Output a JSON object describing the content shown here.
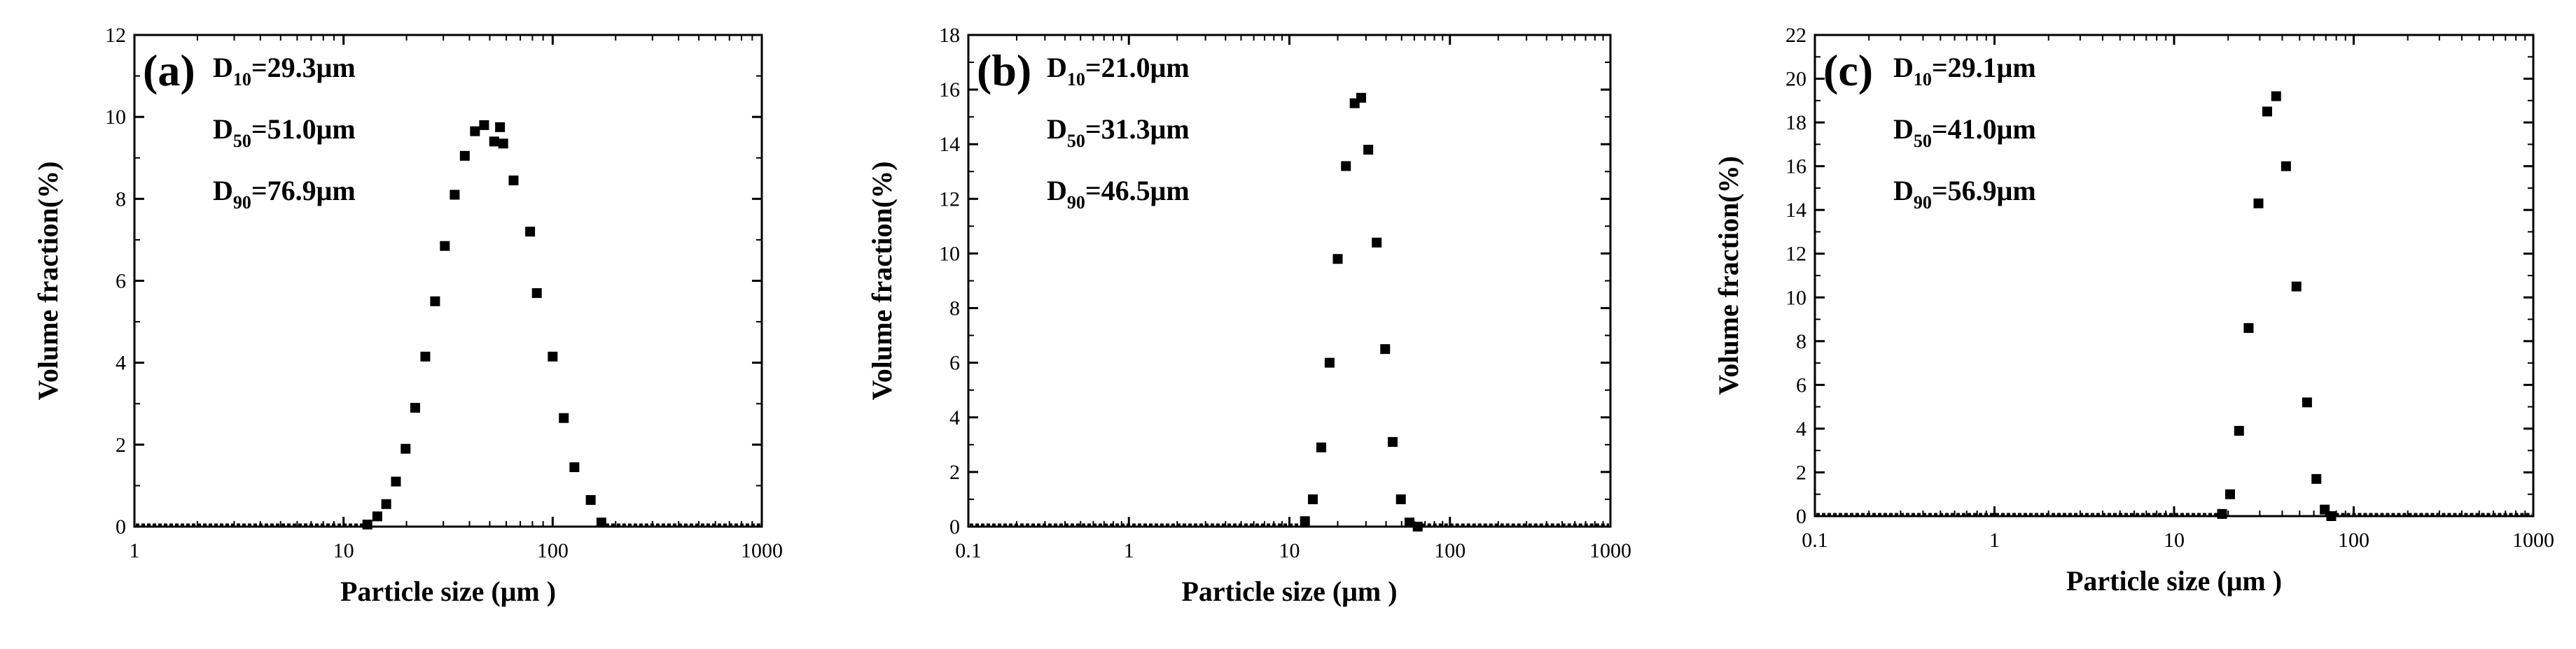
{
  "chart_data": [
    {
      "type": "scatter",
      "panel_label": "(a)",
      "xlabel": "Particle size (μm )",
      "ylabel": "Volume fraction(%)",
      "xscale": "log",
      "xlim": [
        1,
        1000
      ],
      "ylim": [
        0,
        12
      ],
      "x_ticks": [
        1,
        10,
        100,
        1000
      ],
      "x_tick_labels": [
        "1",
        "10",
        "100",
        "1000"
      ],
      "y_ticks": [
        0,
        2,
        4,
        6,
        8,
        10,
        12
      ],
      "annotations": [
        {
          "prefix": "D",
          "sub": "10",
          "value": "=29.3μm"
        },
        {
          "prefix": "D",
          "sub": "50",
          "value": "=51.0μm"
        },
        {
          "prefix": "D",
          "sub": "90",
          "value": "=76.9μm"
        }
      ],
      "series": [
        {
          "name": "Volume fraction",
          "x": [
            13,
            14.5,
            16,
            17.8,
            19.8,
            22,
            24.6,
            27.4,
            30.5,
            34,
            38,
            42.5,
            47,
            52.5,
            56,
            58,
            65,
            78,
            84,
            100,
            113,
            127,
            152,
            171
          ],
          "y": [
            0.05,
            0.25,
            0.55,
            1.1,
            1.9,
            2.9,
            4.15,
            5.5,
            6.85,
            8.1,
            9.05,
            9.65,
            9.8,
            9.4,
            9.75,
            9.35,
            8.45,
            7.2,
            5.7,
            4.15,
            2.65,
            1.45,
            0.65,
            0.1
          ]
        }
      ]
    },
    {
      "type": "scatter",
      "panel_label": "(b)",
      "xlabel": "Particle size (μm )",
      "ylabel": "Volume fraction(%)",
      "xscale": "log",
      "xlim": [
        0.1,
        1000
      ],
      "ylim": [
        0,
        18
      ],
      "x_ticks": [
        0.1,
        1,
        10,
        100,
        1000
      ],
      "x_tick_labels": [
        "0.1",
        "1",
        "10",
        "100",
        "1000"
      ],
      "y_ticks": [
        0,
        2,
        4,
        6,
        8,
        10,
        12,
        14,
        16,
        18
      ],
      "annotations": [
        {
          "prefix": "D",
          "sub": "10",
          "value": "=21.0μm"
        },
        {
          "prefix": "D",
          "sub": "50",
          "value": "=31.3μm"
        },
        {
          "prefix": "D",
          "sub": "90",
          "value": "=46.5μm"
        }
      ],
      "series": [
        {
          "name": "Volume fraction",
          "x": [
            12.5,
            14,
            15.8,
            17.8,
            20,
            22.5,
            25.5,
            28,
            31,
            35,
            39.5,
            44,
            49.5,
            56,
            63
          ],
          "y": [
            0.2,
            1.0,
            2.9,
            6.0,
            9.8,
            13.2,
            15.5,
            15.7,
            13.8,
            10.4,
            6.5,
            3.1,
            1.0,
            0.15,
            0.0
          ]
        }
      ]
    },
    {
      "type": "scatter",
      "panel_label": "(c)",
      "xlabel": "Particle size (μm )",
      "ylabel": "Volume fraction(%)",
      "xscale": "log",
      "xlim": [
        0.1,
        1000
      ],
      "ylim": [
        0,
        22
      ],
      "x_ticks": [
        0.1,
        1,
        10,
        100,
        1000
      ],
      "x_tick_labels": [
        "0.1",
        "1",
        "10",
        "100",
        "1000"
      ],
      "y_ticks": [
        0,
        2,
        4,
        6,
        8,
        10,
        12,
        14,
        16,
        18,
        20,
        22
      ],
      "annotations": [
        {
          "prefix": "D",
          "sub": "10",
          "value": "=29.1μm"
        },
        {
          "prefix": "D",
          "sub": "50",
          "value": "=41.0μm"
        },
        {
          "prefix": "D",
          "sub": "90",
          "value": "=56.9μm"
        }
      ],
      "series": [
        {
          "name": "Volume fraction",
          "x": [
            18.5,
            20.5,
            23,
            26,
            29.5,
            33,
            37,
            42,
            48,
            55,
            62,
            69,
            75
          ],
          "y": [
            0.1,
            1.0,
            3.9,
            8.6,
            14.3,
            18.5,
            19.2,
            16.0,
            10.5,
            5.2,
            1.7,
            0.3,
            0.0
          ]
        }
      ]
    }
  ]
}
